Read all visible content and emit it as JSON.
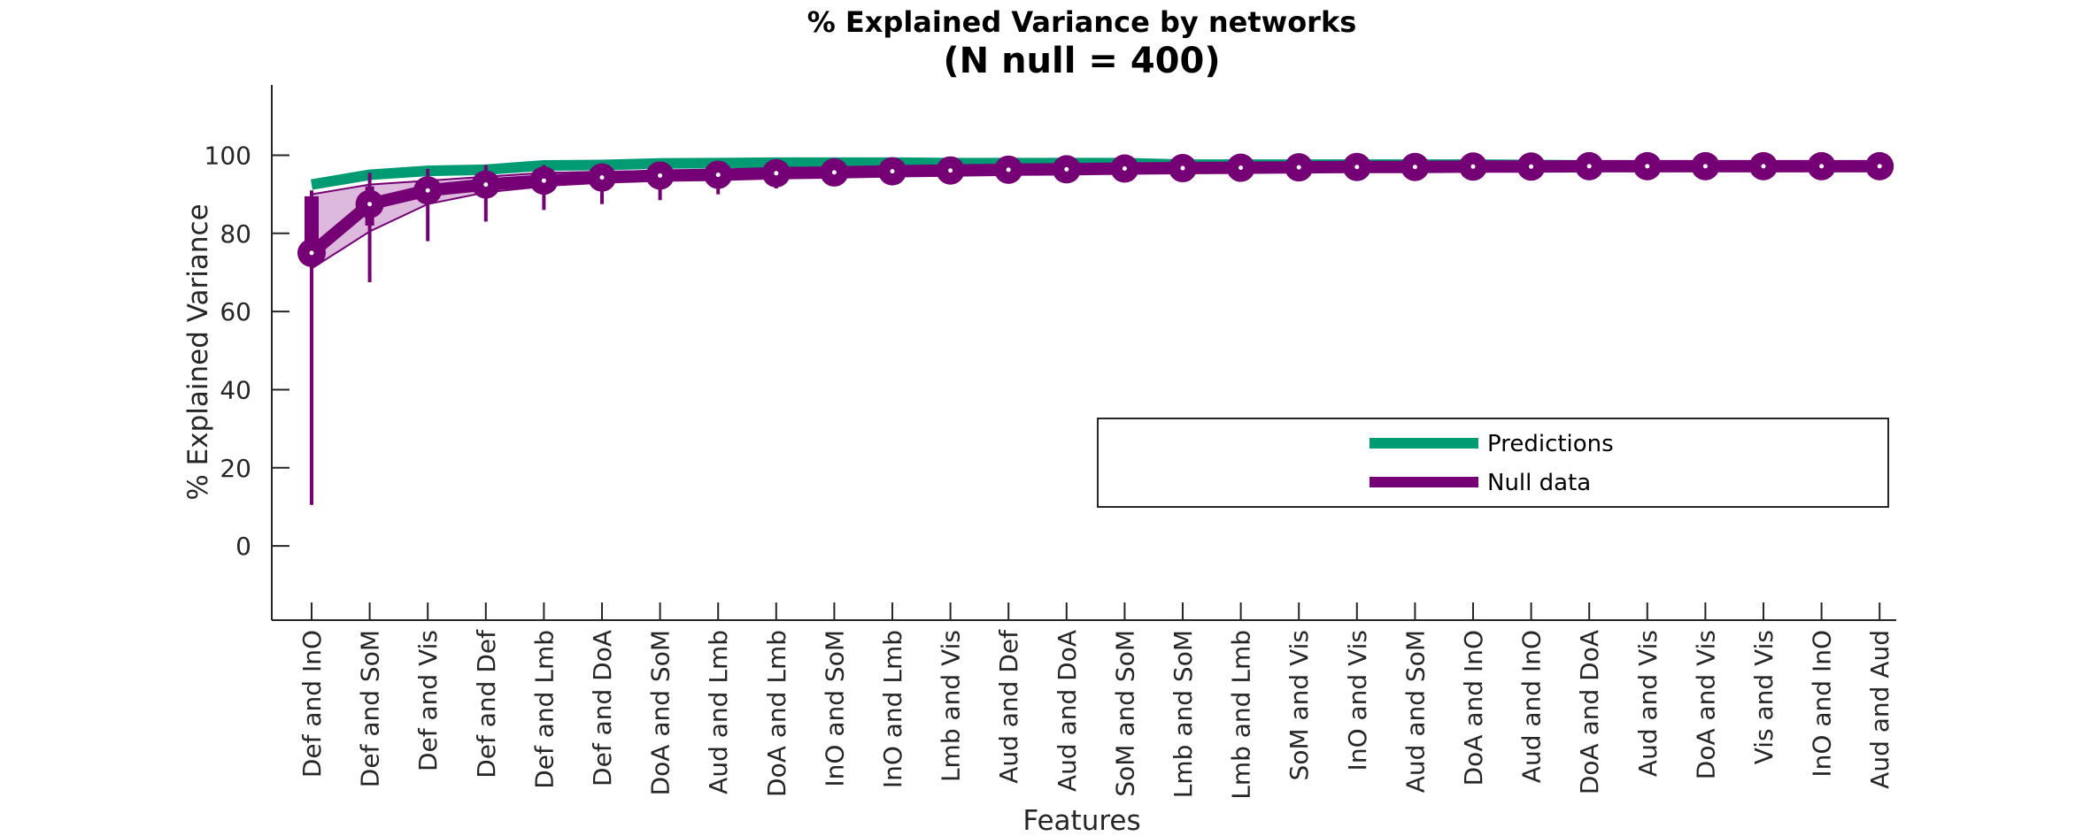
{
  "chart_data": {
    "type": "line",
    "title": "% Explained Variance by networks",
    "subtitle": "(N null = 400)",
    "xlabel": "Features",
    "ylabel": "% Explained Variance",
    "ylim": [
      -19,
      118
    ],
    "yticks": [
      0,
      20,
      40,
      60,
      80,
      100
    ],
    "categories": [
      "Def and InO",
      "Def and SoM",
      "Def and Vis",
      "Def and Def",
      "Def and Lmb",
      "Def and DoA",
      "DoA and SoM",
      "Aud and Lmb",
      "DoA and Lmb",
      "InO and SoM",
      "InO and Lmb",
      "Lmb and Vis",
      "Aud and Def",
      "Aud and DoA",
      "SoM and SoM",
      "Lmb and SoM",
      "Lmb and Lmb",
      "SoM and Vis",
      "InO and Vis",
      "Aud and SoM",
      "DoA and InO",
      "Aud and InO",
      "DoA and DoA",
      "Aud and Vis",
      "DoA and Vis",
      "Vis and Vis",
      "InO and InO",
      "Aud and Aud"
    ],
    "grid": false,
    "legend_position": "lower-right",
    "series": [
      {
        "name": "Predictions",
        "color": "#009a73",
        "values": [
          92.5,
          95.0,
          96.0,
          96.3,
          97.4,
          97.5,
          97.9,
          98.0,
          98.1,
          98.1,
          98.1,
          98.0,
          98.0,
          98.0,
          98.0,
          97.6,
          97.6,
          97.6,
          97.6,
          97.6,
          97.6,
          97.5,
          97.4,
          97.4,
          97.4,
          97.4,
          97.4,
          97.4
        ]
      },
      {
        "name": "Null data",
        "color": "#750075",
        "fill_color": "#d9b3d9",
        "values": [
          75.0,
          87.5,
          91.0,
          92.5,
          93.5,
          94.3,
          94.8,
          95.0,
          95.4,
          95.6,
          95.9,
          96.1,
          96.3,
          96.4,
          96.6,
          96.7,
          96.8,
          96.9,
          97.0,
          97.0,
          97.1,
          97.1,
          97.2,
          97.2,
          97.2,
          97.2,
          97.2,
          97.2
        ],
        "band_upper": [
          90.0,
          92.5,
          93.5,
          94.5,
          95.5,
          95.8,
          96.0,
          96.1,
          96.3,
          96.4,
          96.5,
          96.6,
          96.7,
          96.8,
          96.9,
          97.0,
          97.0,
          97.1,
          97.1,
          97.2,
          97.2,
          97.2,
          97.2,
          97.2,
          97.3,
          97.3,
          97.3,
          97.3
        ],
        "band_lower": [
          71.0,
          80.5,
          87.5,
          90.5,
          92.0,
          93.5,
          94.0,
          94.5,
          95.0,
          95.3,
          95.6,
          95.9,
          96.1,
          96.3,
          96.5,
          96.6,
          96.7,
          96.8,
          96.9,
          97.0,
          97.0,
          97.1,
          97.1,
          97.1,
          97.2,
          97.2,
          97.2,
          97.2
        ],
        "whisker_max": [
          91.0,
          95.5,
          96.5,
          97.5,
          97.5,
          97.8,
          97.6,
          97.8,
          97.6,
          97.4,
          97.4,
          97.4,
          97.4,
          97.4,
          97.4,
          97.4,
          97.4,
          97.4,
          97.4,
          97.4,
          97.4,
          97.4,
          97.4,
          97.4,
          97.4,
          97.4,
          97.4,
          97.4
        ],
        "whisker_min": [
          10.5,
          67.5,
          78.0,
          83.0,
          86.0,
          87.5,
          88.5,
          90.0,
          91.5,
          92.5,
          93.5,
          94.0,
          94.5,
          95.0,
          95.5,
          95.8,
          96.0,
          96.2,
          96.4,
          96.5,
          96.6,
          96.7,
          96.8,
          96.8,
          96.9,
          96.9,
          97.0,
          97.0
        ],
        "box_upper": [
          89.5,
          92.0,
          93.5,
          94.5,
          95.3,
          95.8,
          96.0,
          96.1,
          96.3,
          96.4,
          96.5,
          96.6,
          96.7,
          96.8,
          96.9,
          97.0,
          97.0,
          97.1,
          97.1,
          97.2,
          97.2,
          97.2,
          97.2,
          97.2,
          97.3,
          97.3,
          97.3,
          97.3
        ],
        "box_lower": [
          72.0,
          82.0,
          88.5,
          91.0,
          92.3,
          93.6,
          94.1,
          94.6,
          95.0,
          95.3,
          95.6,
          95.9,
          96.1,
          96.3,
          96.5,
          96.6,
          96.7,
          96.8,
          96.9,
          97.0,
          97.0,
          97.1,
          97.1,
          97.1,
          97.2,
          97.2,
          97.2,
          97.2
        ]
      }
    ]
  }
}
